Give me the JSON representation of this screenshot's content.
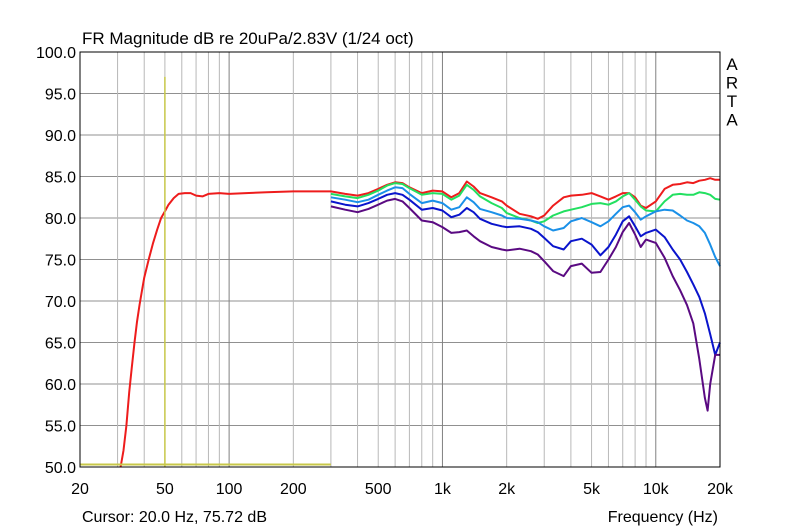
{
  "chart_data": {
    "type": "line",
    "title": "FR Magnitude dB re 20uPa/2.83V (1/24 oct)",
    "xlabel": "Frequency (Hz)",
    "ylabel": "",
    "x_scale": "log",
    "xlim": [
      20,
      20000
    ],
    "ylim": [
      50,
      100
    ],
    "grid": true,
    "x_ticks": [
      20,
      50,
      100,
      200,
      500,
      1000,
      2000,
      5000,
      10000,
      20000
    ],
    "x_tick_labels": [
      "20",
      "50",
      "100",
      "200",
      "500",
      "1k",
      "2k",
      "5k",
      "10k",
      "20k"
    ],
    "y_ticks": [
      50,
      55,
      60,
      65,
      70,
      75,
      80,
      85,
      90,
      95,
      100
    ],
    "y_tick_labels": [
      "50.0",
      "55.0",
      "60.0",
      "65.0",
      "70.0",
      "75.0",
      "80.0",
      "85.0",
      "90.0",
      "95.0",
      "100.0"
    ],
    "brand_letters": [
      "A",
      "R",
      "T",
      "A"
    ],
    "cursor_text": "Cursor: 20.0 Hz, 75.72 dB",
    "cursor": {
      "x": 50,
      "y_top": 97,
      "color": "#c8c84a"
    },
    "baseline_marker": {
      "x_start": 20,
      "x_end": 300,
      "y": 50.3,
      "color": "#c8c84a"
    },
    "series": [
      {
        "color": "#ee1c1c",
        "points": [
          [
            31,
            50
          ],
          [
            32,
            52
          ],
          [
            33,
            55
          ],
          [
            34,
            59
          ],
          [
            35,
            62
          ],
          [
            36,
            65
          ],
          [
            37,
            67.5
          ],
          [
            38,
            69.5
          ],
          [
            39,
            71.2
          ],
          [
            40,
            72.8
          ],
          [
            42,
            75
          ],
          [
            44,
            77
          ],
          [
            46,
            78.6
          ],
          [
            48,
            80
          ],
          [
            50,
            80.8
          ],
          [
            52,
            81.6
          ],
          [
            55,
            82.4
          ],
          [
            58,
            82.9
          ],
          [
            62,
            83
          ],
          [
            66,
            83
          ],
          [
            70,
            82.7
          ],
          [
            75,
            82.6
          ],
          [
            80,
            82.9
          ],
          [
            90,
            83
          ],
          [
            100,
            82.9
          ],
          [
            120,
            83
          ],
          [
            150,
            83.1
          ],
          [
            200,
            83.2
          ],
          [
            250,
            83.2
          ],
          [
            300,
            83.2
          ],
          [
            350,
            82.9
          ],
          [
            400,
            82.7
          ],
          [
            450,
            83
          ],
          [
            500,
            83.5
          ],
          [
            550,
            84
          ],
          [
            600,
            84.3
          ],
          [
            650,
            84.2
          ],
          [
            700,
            83.7
          ],
          [
            800,
            83
          ],
          [
            900,
            83.3
          ],
          [
            1000,
            83.2
          ],
          [
            1100,
            82.5
          ],
          [
            1200,
            83
          ],
          [
            1300,
            84.4
          ],
          [
            1400,
            83.8
          ],
          [
            1500,
            83
          ],
          [
            1700,
            82.5
          ],
          [
            1900,
            82
          ],
          [
            2000,
            81.5
          ],
          [
            2300,
            80.5
          ],
          [
            2600,
            80.2
          ],
          [
            2800,
            79.9
          ],
          [
            3000,
            80.3
          ],
          [
            3300,
            81.5
          ],
          [
            3700,
            82.5
          ],
          [
            4000,
            82.7
          ],
          [
            4500,
            82.8
          ],
          [
            5000,
            83
          ],
          [
            5500,
            82.6
          ],
          [
            6000,
            82.2
          ],
          [
            6500,
            82.6
          ],
          [
            7000,
            83
          ],
          [
            7500,
            83
          ],
          [
            8000,
            82.5
          ],
          [
            8500,
            81.5
          ],
          [
            9000,
            81.2
          ],
          [
            10000,
            82
          ],
          [
            11000,
            83.5
          ],
          [
            12000,
            84
          ],
          [
            13000,
            84.1
          ],
          [
            14000,
            84.3
          ],
          [
            15000,
            84.2
          ],
          [
            16000,
            84.5
          ],
          [
            17000,
            84.6
          ],
          [
            18000,
            84.8
          ],
          [
            19000,
            84.6
          ],
          [
            20000,
            84.6
          ]
        ]
      },
      {
        "color": "#22e060",
        "points": [
          [
            300,
            82.9
          ],
          [
            350,
            82.6
          ],
          [
            400,
            82.4
          ],
          [
            450,
            82.8
          ],
          [
            500,
            83.3
          ],
          [
            550,
            83.9
          ],
          [
            600,
            84.2
          ],
          [
            650,
            84.1
          ],
          [
            700,
            83.6
          ],
          [
            800,
            82.8
          ],
          [
            900,
            83
          ],
          [
            1000,
            82.9
          ],
          [
            1100,
            82.2
          ],
          [
            1200,
            82.7
          ],
          [
            1300,
            84
          ],
          [
            1400,
            83.4
          ],
          [
            1500,
            82.6
          ],
          [
            1700,
            81.8
          ],
          [
            1900,
            81.2
          ],
          [
            2000,
            80.6
          ],
          [
            2300,
            80
          ],
          [
            2600,
            79.7
          ],
          [
            2800,
            79.4
          ],
          [
            3000,
            79.6
          ],
          [
            3300,
            80.3
          ],
          [
            3700,
            80.8
          ],
          [
            4000,
            81
          ],
          [
            4500,
            81.3
          ],
          [
            5000,
            81.7
          ],
          [
            5500,
            81.8
          ],
          [
            6000,
            81.6
          ],
          [
            6500,
            82
          ],
          [
            7000,
            82.6
          ],
          [
            7500,
            83
          ],
          [
            8000,
            82.2
          ],
          [
            8500,
            81.4
          ],
          [
            9000,
            80.9
          ],
          [
            10000,
            80.8
          ],
          [
            11000,
            82
          ],
          [
            12000,
            82.8
          ],
          [
            13000,
            82.9
          ],
          [
            14000,
            82.8
          ],
          [
            15000,
            82.8
          ],
          [
            16000,
            83.1
          ],
          [
            17000,
            83
          ],
          [
            18000,
            82.8
          ],
          [
            19000,
            82.3
          ],
          [
            20000,
            82.2
          ]
        ]
      },
      {
        "color": "#1a90e8",
        "points": [
          [
            300,
            82.5
          ],
          [
            350,
            82.2
          ],
          [
            400,
            81.9
          ],
          [
            450,
            82.2
          ],
          [
            500,
            82.8
          ],
          [
            550,
            83.3
          ],
          [
            600,
            83.7
          ],
          [
            650,
            83.6
          ],
          [
            700,
            82.9
          ],
          [
            800,
            81.8
          ],
          [
            900,
            82.1
          ],
          [
            1000,
            81.8
          ],
          [
            1100,
            81
          ],
          [
            1200,
            81.3
          ],
          [
            1300,
            82.5
          ],
          [
            1400,
            81.9
          ],
          [
            1500,
            81.1
          ],
          [
            1700,
            80.7
          ],
          [
            1900,
            80.3
          ],
          [
            2000,
            80
          ],
          [
            2300,
            79.9
          ],
          [
            2600,
            79.7
          ],
          [
            2800,
            79.5
          ],
          [
            3000,
            79
          ],
          [
            3300,
            78.5
          ],
          [
            3700,
            78.8
          ],
          [
            4000,
            79.6
          ],
          [
            4500,
            80
          ],
          [
            5000,
            79.5
          ],
          [
            5500,
            79
          ],
          [
            6000,
            79.6
          ],
          [
            6500,
            80.5
          ],
          [
            7000,
            81.3
          ],
          [
            7500,
            81.5
          ],
          [
            8000,
            80.7
          ],
          [
            8500,
            79.8
          ],
          [
            9000,
            80.2
          ],
          [
            10000,
            80.8
          ],
          [
            11000,
            81
          ],
          [
            12000,
            80.9
          ],
          [
            13000,
            80.3
          ],
          [
            14000,
            79.7
          ],
          [
            15000,
            79.4
          ],
          [
            16000,
            79
          ],
          [
            17000,
            78.2
          ],
          [
            18000,
            76.8
          ],
          [
            19000,
            75.3
          ],
          [
            20000,
            74.2
          ]
        ]
      },
      {
        "color": "#0a14cc",
        "points": [
          [
            300,
            82
          ],
          [
            350,
            81.6
          ],
          [
            400,
            81.4
          ],
          [
            450,
            81.8
          ],
          [
            500,
            82.3
          ],
          [
            550,
            82.8
          ],
          [
            600,
            83
          ],
          [
            650,
            82.8
          ],
          [
            700,
            82.2
          ],
          [
            800,
            81
          ],
          [
            900,
            81.2
          ],
          [
            1000,
            80.9
          ],
          [
            1100,
            80.1
          ],
          [
            1200,
            80.4
          ],
          [
            1300,
            81.2
          ],
          [
            1400,
            80.7
          ],
          [
            1500,
            79.9
          ],
          [
            1700,
            79.3
          ],
          [
            1900,
            79
          ],
          [
            2000,
            78.9
          ],
          [
            2300,
            79
          ],
          [
            2600,
            78.7
          ],
          [
            2800,
            78.3
          ],
          [
            3000,
            77.6
          ],
          [
            3300,
            76.6
          ],
          [
            3700,
            76.2
          ],
          [
            4000,
            77.2
          ],
          [
            4500,
            77.5
          ],
          [
            5000,
            76.8
          ],
          [
            5500,
            75.5
          ],
          [
            6000,
            76.5
          ],
          [
            6500,
            78
          ],
          [
            7000,
            79.6
          ],
          [
            7500,
            80.2
          ],
          [
            8000,
            79
          ],
          [
            8500,
            77.8
          ],
          [
            9000,
            78.2
          ],
          [
            10000,
            78.6
          ],
          [
            11000,
            77.7
          ],
          [
            12000,
            76.2
          ],
          [
            13000,
            75
          ],
          [
            14000,
            73.5
          ],
          [
            15000,
            72
          ],
          [
            16000,
            70.5
          ],
          [
            17000,
            68.5
          ],
          [
            18000,
            66
          ],
          [
            19000,
            63.5
          ],
          [
            20000,
            65
          ]
        ]
      },
      {
        "color": "#5a0a82",
        "points": [
          [
            300,
            81.4
          ],
          [
            350,
            81
          ],
          [
            400,
            80.7
          ],
          [
            450,
            81.1
          ],
          [
            500,
            81.6
          ],
          [
            550,
            82.1
          ],
          [
            600,
            82.3
          ],
          [
            650,
            82
          ],
          [
            700,
            81.2
          ],
          [
            800,
            79.7
          ],
          [
            900,
            79.5
          ],
          [
            1000,
            78.9
          ],
          [
            1100,
            78.2
          ],
          [
            1200,
            78.3
          ],
          [
            1300,
            78.5
          ],
          [
            1400,
            77.8
          ],
          [
            1500,
            77.2
          ],
          [
            1700,
            76.5
          ],
          [
            1900,
            76.2
          ],
          [
            2000,
            76.1
          ],
          [
            2300,
            76.3
          ],
          [
            2600,
            76
          ],
          [
            2800,
            75.6
          ],
          [
            3000,
            74.8
          ],
          [
            3300,
            73.6
          ],
          [
            3700,
            73
          ],
          [
            4000,
            74.2
          ],
          [
            4500,
            74.5
          ],
          [
            5000,
            73.4
          ],
          [
            5500,
            73.5
          ],
          [
            6000,
            75
          ],
          [
            6500,
            76.5
          ],
          [
            7000,
            78.3
          ],
          [
            7500,
            79.4
          ],
          [
            8000,
            78
          ],
          [
            8500,
            76.5
          ],
          [
            9000,
            77.4
          ],
          [
            10000,
            77
          ],
          [
            11000,
            75.2
          ],
          [
            12000,
            73
          ],
          [
            13000,
            71.3
          ],
          [
            14000,
            69.5
          ],
          [
            15000,
            67.3
          ],
          [
            16000,
            63
          ],
          [
            17000,
            58.3
          ],
          [
            17500,
            56.8
          ],
          [
            18000,
            60
          ],
          [
            19000,
            63.5
          ],
          [
            20000,
            63.5
          ]
        ]
      }
    ]
  }
}
